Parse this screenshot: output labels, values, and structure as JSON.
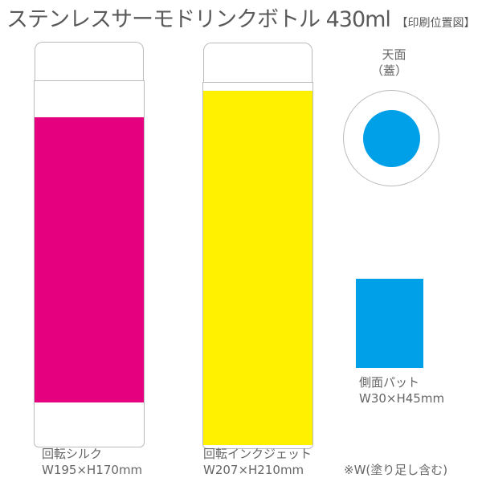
{
  "title": "ステンレスサーモドリンクボトル 430ml",
  "subtitle": "【印刷位置図】",
  "bottle_silk": {
    "label": "回転シルク",
    "size": "W195×H170mm",
    "color": "#e4007f"
  },
  "bottle_inkjet": {
    "label": "回転インクジェット",
    "size": "W207×H210mm",
    "color": "#fff100"
  },
  "top": {
    "label": "天面",
    "sublabel": "（蓋）",
    "color": "#00a0e9"
  },
  "side_pad": {
    "label": "側面パット",
    "size": "W30×H45mm",
    "color": "#00a0e9"
  },
  "note": "※W(塗り足し含む)"
}
